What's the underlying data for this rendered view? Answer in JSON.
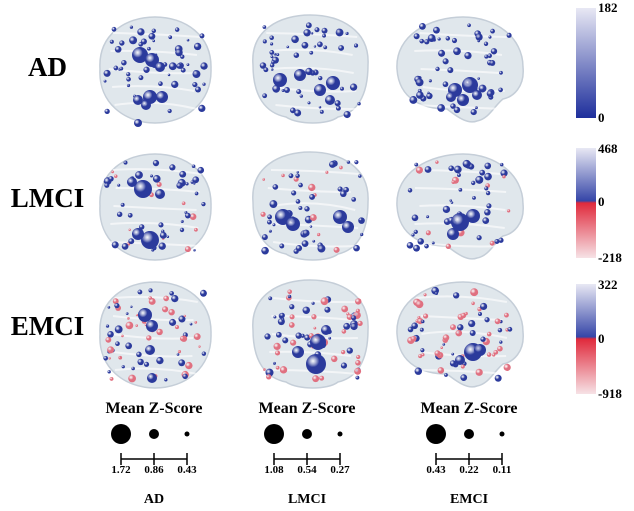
{
  "rows": [
    {
      "label": "AD",
      "colorbar": {
        "top": "182",
        "zero": "0",
        "bottom": "",
        "type": "blue"
      }
    },
    {
      "label": "LMCI",
      "colorbar": {
        "top": "468",
        "zero": "0",
        "bottom": "-218",
        "type": "diverging"
      }
    },
    {
      "label": "EMCI",
      "colorbar": {
        "top": "322",
        "zero": "0",
        "bottom": "-918",
        "type": "diverging"
      }
    }
  ],
  "views": [
    "axial",
    "coronal",
    "sagittal"
  ],
  "legend": [
    {
      "title": "Mean Z-Score",
      "ticks": [
        "1.72",
        "0.86",
        "0.43"
      ],
      "group": "AD"
    },
    {
      "title": "Mean Z-Score",
      "ticks": [
        "1.08",
        "0.54",
        "0.27"
      ],
      "group": "LMCI"
    },
    {
      "title": "Mean Z-Score",
      "ticks": [
        "0.43",
        "0.22",
        "0.11"
      ],
      "group": "EMCI"
    }
  ],
  "colors": {
    "positive": "#2b3a9c",
    "negative": "#e07080",
    "brain": "#dfe6ec"
  }
}
